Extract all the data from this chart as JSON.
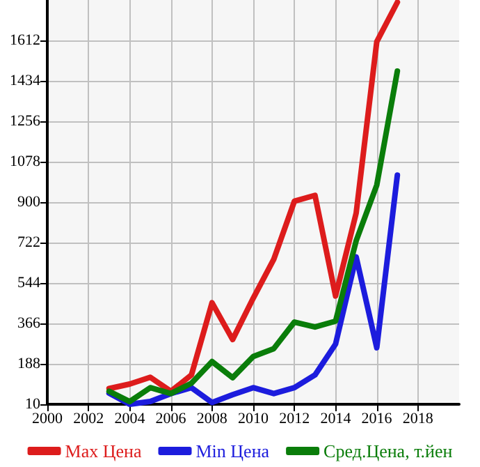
{
  "chart_data": {
    "type": "line",
    "x": [
      2003,
      2004,
      2005,
      2006,
      2007,
      2008,
      2009,
      2010,
      2011,
      2012,
      2013,
      2014,
      2015,
      2016,
      2017
    ],
    "series": [
      {
        "name": "Max Цена",
        "color": "#dd1c1c",
        "values": [
          79,
          99,
          129,
          67,
          139,
          457,
          295,
          477,
          649,
          904,
          930,
          487,
          852,
          1606,
          1780
        ]
      },
      {
        "name": "Min Цена",
        "color": "#1c1cdd",
        "values": [
          59,
          10,
          22,
          57,
          83,
          18,
          52,
          83,
          57,
          83,
          139,
          275,
          659,
          259,
          1019
        ]
      },
      {
        "name": "Сред.Цена, т.йен",
        "color": "#0a7d0a",
        "values": [
          67,
          22,
          83,
          57,
          103,
          198,
          127,
          220,
          255,
          372,
          350,
          376,
          730,
          975,
          1477
        ]
      }
    ],
    "xlim": [
      2000,
      2020
    ],
    "xticks": [
      2000,
      2002,
      2004,
      2006,
      2008,
      2010,
      2012,
      2014,
      2016,
      2018
    ],
    "ylim": [
      10,
      1790
    ],
    "yticks": [
      10,
      188,
      366,
      544,
      722,
      900,
      1078,
      1256,
      1434,
      1612
    ],
    "grid": true,
    "legend": "bottom",
    "marker": "none",
    "line_style": "solid"
  }
}
